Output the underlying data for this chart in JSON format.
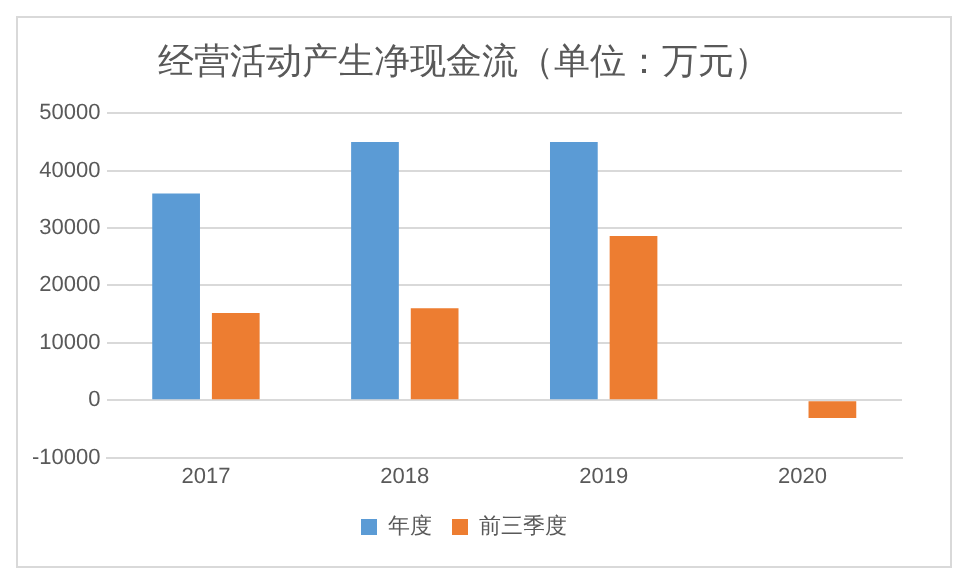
{
  "chart_data": {
    "type": "bar",
    "title": "经营活动产生净现金流（单位：万元）",
    "categories": [
      "2017",
      "2018",
      "2019",
      "2020"
    ],
    "series": [
      {
        "name": "年度",
        "color": "#5b9bd5",
        "values": [
          36000,
          45000,
          45000,
          null
        ]
      },
      {
        "name": "前三季度",
        "color": "#ed7d31",
        "values": [
          15200,
          16000,
          28600,
          -3100
        ]
      }
    ],
    "ylim": [
      -10000,
      50000
    ],
    "yticks": [
      -10000,
      0,
      10000,
      20000,
      30000,
      40000,
      50000
    ],
    "grid": "y",
    "legend": "bottom"
  }
}
